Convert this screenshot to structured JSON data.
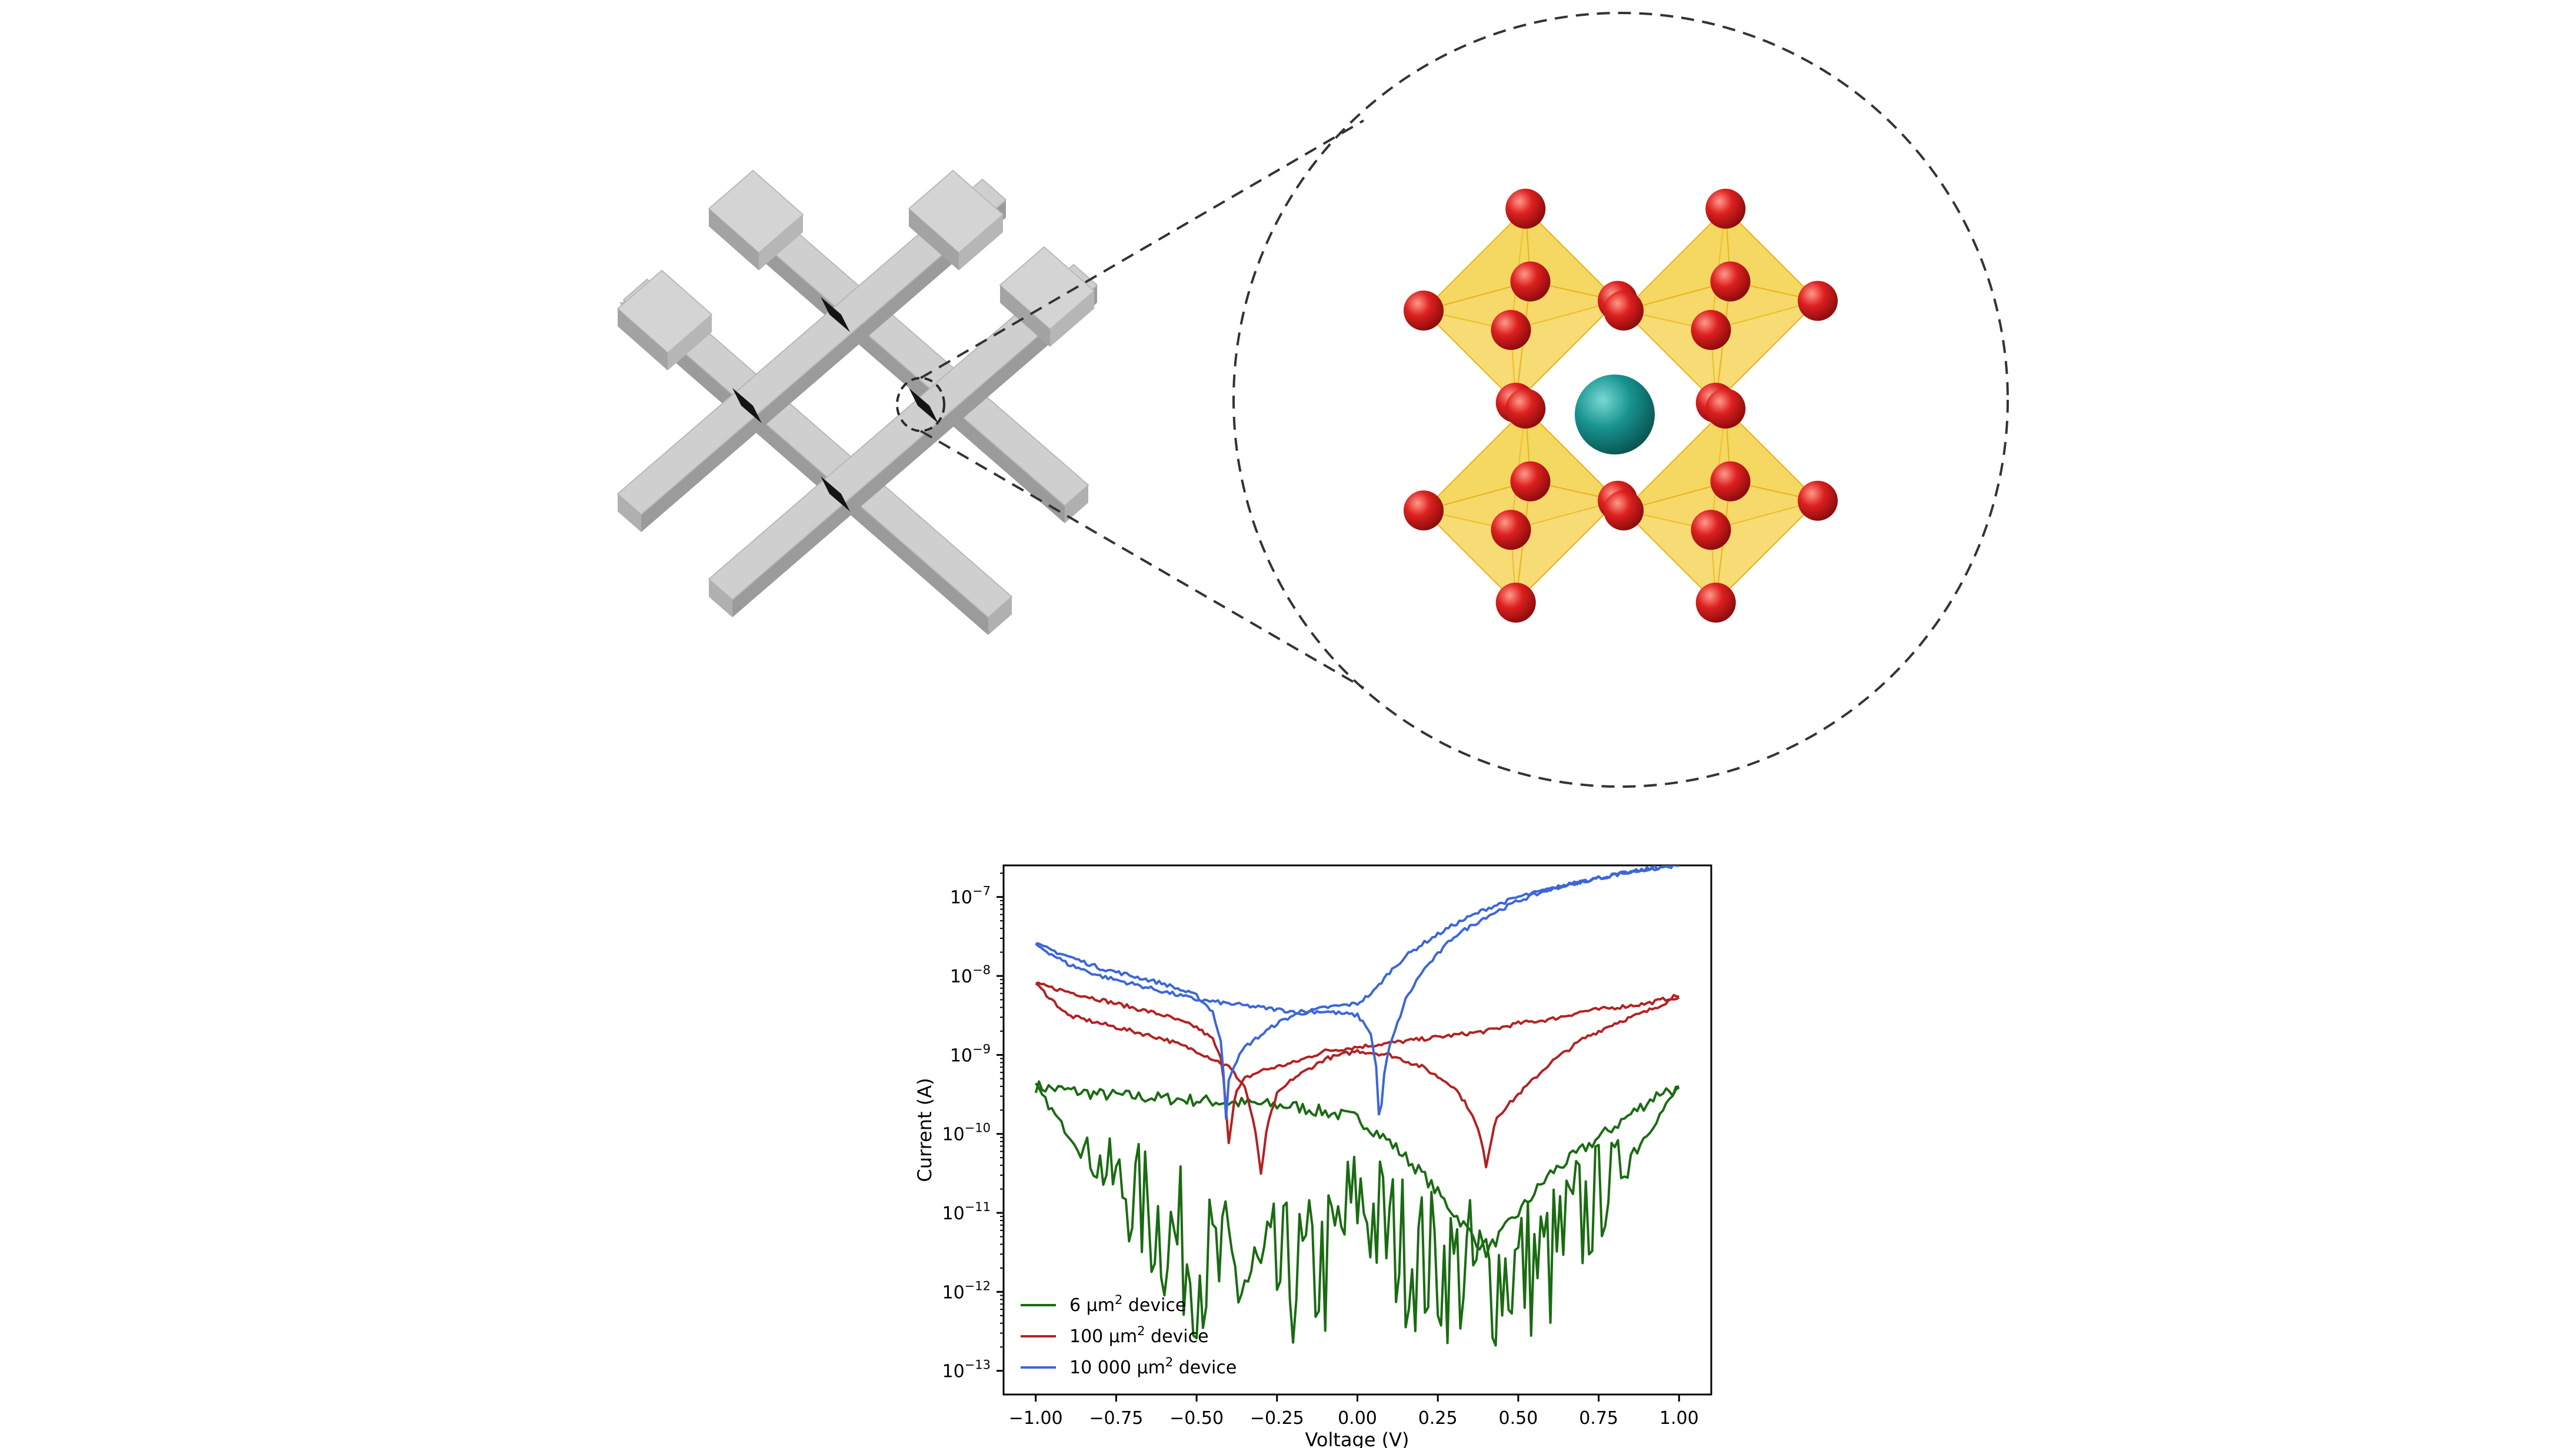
{
  "chart_data": {
    "type": "line",
    "title": "",
    "xlabel": "Voltage (V)",
    "ylabel": "Current (A)",
    "xlim": [
      -1.1,
      1.1
    ],
    "ylim_exponent": [
      -13.3,
      -6.6
    ],
    "yscale": "log",
    "grid": false,
    "legend_position": "lower-left",
    "x_ticks": [
      "−1.00",
      "−0.75",
      "−0.50",
      "−0.25",
      "0.00",
      "0.25",
      "0.50",
      "0.75",
      "1.00"
    ],
    "y_tick_base": "10",
    "y_tick_exponents": [
      "−7",
      "−8",
      "−9",
      "−10",
      "−11",
      "−12",
      "−13"
    ],
    "series": [
      {
        "name": "6 µm² device",
        "name_text": "6 µm",
        "name_sup": "2",
        "name_suffix": " device",
        "color": "#1a6b12",
        "noise": true,
        "branches": [
          {
            "x": [
              -1.0,
              -0.9,
              -0.8,
              -0.6,
              -0.4,
              -0.2,
              0.0,
              0.1,
              0.2,
              0.3,
              0.4,
              0.5,
              0.6,
              0.7,
              0.8,
              0.9,
              0.95,
              1.0
            ],
            "y": [
              -9.4,
              -9.45,
              -9.5,
              -9.55,
              -9.6,
              -9.65,
              -9.8,
              -10.1,
              -10.5,
              -11.0,
              -11.5,
              -11.0,
              -10.5,
              -10.2,
              -9.9,
              -9.6,
              -9.45,
              -9.45
            ]
          },
          {
            "x": [
              -1.0,
              -0.95,
              -0.9,
              -0.85,
              -0.8,
              -0.7,
              -0.6,
              -0.5,
              -0.4,
              -0.3,
              -0.2,
              -0.1,
              0.0,
              0.1,
              0.2,
              0.4,
              0.6,
              0.8,
              0.9,
              0.95,
              1.0
            ],
            "y": [
              -9.4,
              -9.7,
              -10.0,
              -10.2,
              -10.4,
              -10.8,
              -11.2,
              -11.6,
              -11.8,
              -11.9,
              -11.8,
              -11.7,
              -10.8,
              -11.3,
              -11.6,
              -11.8,
              -11.6,
              -10.5,
              -10.0,
              -9.7,
              -9.4
            ]
          }
        ]
      },
      {
        "name": "100 µm² device",
        "name_text": "100 µm",
        "name_sup": "2",
        "name_suffix": " device",
        "color": "#b22222",
        "noise": false,
        "branches": [
          {
            "x": [
              -1.0,
              -0.9,
              -0.8,
              -0.7,
              -0.6,
              -0.5,
              -0.45,
              -0.42,
              -0.4,
              -0.38,
              -0.35,
              -0.3,
              -0.2,
              -0.1,
              0.0,
              0.1,
              0.2,
              0.3,
              0.4,
              0.5,
              0.6,
              0.7,
              0.8,
              0.9,
              1.0
            ],
            "y": [
              -8.1,
              -8.2,
              -8.3,
              -8.4,
              -8.5,
              -8.65,
              -8.8,
              -9.1,
              -10.1,
              -9.5,
              -9.3,
              -9.2,
              -9.1,
              -8.95,
              -8.9,
              -8.85,
              -8.8,
              -8.75,
              -8.7,
              -8.6,
              -8.55,
              -8.45,
              -8.4,
              -8.35,
              -8.25
            ]
          },
          {
            "x": [
              -1.0,
              -0.9,
              -0.8,
              -0.7,
              -0.6,
              -0.5,
              -0.4,
              -0.35,
              -0.32,
              -0.3,
              -0.28,
              -0.25,
              -0.2,
              -0.1,
              0.0,
              0.1,
              0.2,
              0.3,
              0.35,
              0.38,
              0.4,
              0.43,
              0.5,
              0.6,
              0.7,
              0.8,
              0.9,
              1.0
            ],
            "y": [
              -8.1,
              -8.5,
              -8.6,
              -8.7,
              -8.8,
              -8.95,
              -9.15,
              -9.4,
              -9.9,
              -10.5,
              -9.9,
              -9.5,
              -9.3,
              -9.05,
              -8.95,
              -9.0,
              -9.15,
              -9.4,
              -9.7,
              -10.0,
              -10.4,
              -9.8,
              -9.5,
              -9.1,
              -8.8,
              -8.6,
              -8.45,
              -8.25
            ]
          }
        ]
      },
      {
        "name": "10 000 µm² device",
        "name_text": "10 000 µm",
        "name_sup": "2",
        "name_suffix": " device",
        "color": "#3c66d8",
        "noise": false,
        "branches": [
          {
            "x": [
              -1.0,
              -0.9,
              -0.8,
              -0.7,
              -0.6,
              -0.5,
              -0.45,
              -0.42,
              -0.41,
              -0.4,
              -0.38,
              -0.35,
              -0.3,
              -0.25,
              -0.2,
              -0.1,
              0.0,
              0.05,
              0.1,
              0.15,
              0.2,
              0.3,
              0.4,
              0.5,
              0.6,
              0.7,
              0.8,
              0.9,
              1.0
            ],
            "y": [
              -7.6,
              -7.75,
              -7.9,
              -8.0,
              -8.1,
              -8.25,
              -8.45,
              -8.9,
              -9.9,
              -9.3,
              -9.1,
              -8.9,
              -8.75,
              -8.6,
              -8.5,
              -8.4,
              -8.35,
              -8.2,
              -7.95,
              -7.75,
              -7.6,
              -7.35,
              -7.15,
              -7.0,
              -6.9,
              -6.8,
              -6.72,
              -6.65,
              -6.6
            ]
          },
          {
            "x": [
              -1.0,
              -0.9,
              -0.8,
              -0.7,
              -0.6,
              -0.5,
              -0.4,
              -0.3,
              -0.2,
              -0.1,
              0.0,
              0.04,
              0.06,
              0.07,
              0.08,
              0.1,
              0.15,
              0.2,
              0.3,
              0.4,
              0.5,
              0.6,
              0.7,
              0.8,
              0.9,
              1.0
            ],
            "y": [
              -7.6,
              -7.85,
              -8.0,
              -8.1,
              -8.2,
              -8.3,
              -8.35,
              -8.4,
              -8.45,
              -8.45,
              -8.5,
              -8.7,
              -9.2,
              -10.0,
              -9.3,
              -8.9,
              -8.3,
              -7.95,
              -7.5,
              -7.25,
              -7.05,
              -6.9,
              -6.8,
              -6.72,
              -6.65,
              -6.6
            ]
          }
        ]
      }
    ]
  },
  "illustration": {
    "bar_color": "#c8c8c8",
    "junction_color": "#141414",
    "oxygen_color": "#d42020",
    "octahedron_color": "#f3cd3a",
    "cation_color": "#178a87"
  }
}
